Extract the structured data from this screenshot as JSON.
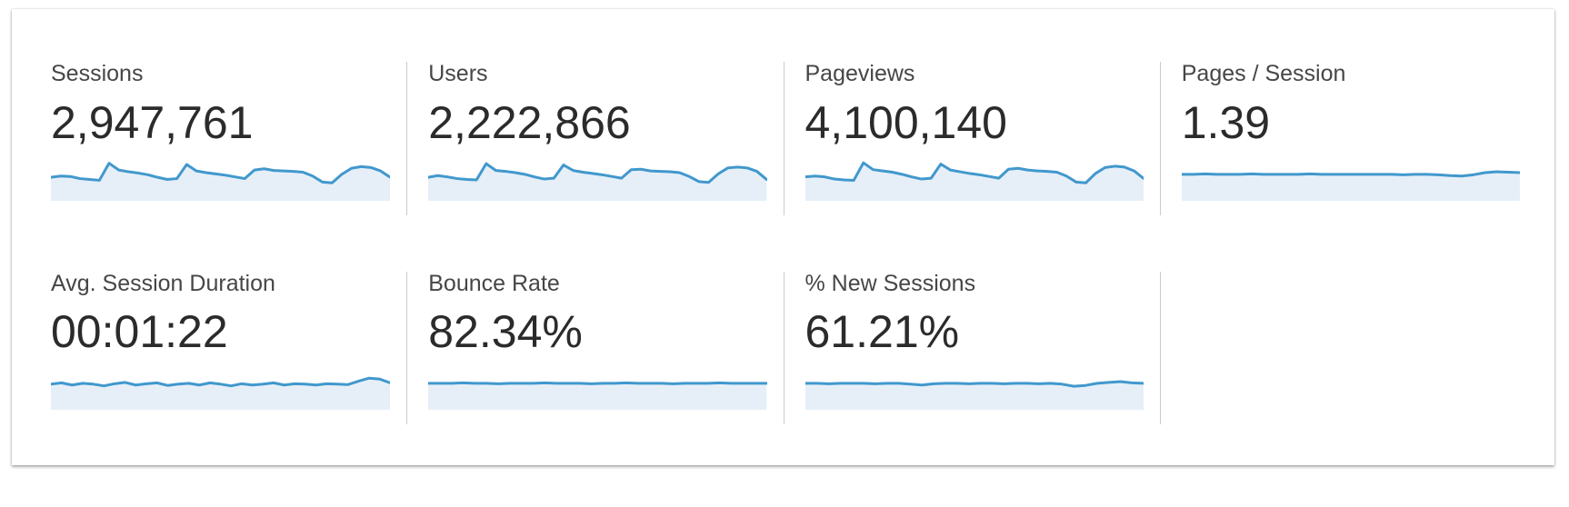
{
  "panel": {
    "background": "#ffffff",
    "divider_color": "#cccccc"
  },
  "colors": {
    "sparkline_stroke": "#4198cd",
    "sparkline_fill": "#e6eff8",
    "label_text": "#464646",
    "value_text": "#2b2b2b"
  },
  "metrics": [
    {
      "label": "Sessions",
      "value": "2,947,761"
    },
    {
      "label": "Users",
      "value": "2,222,866"
    },
    {
      "label": "Pageviews",
      "value": "4,100,140"
    },
    {
      "label": "Pages / Session",
      "value": "1.39"
    },
    {
      "label": "Avg. Session Duration",
      "value": "00:01:22"
    },
    {
      "label": "Bounce Rate",
      "value": "82.34%"
    },
    {
      "label": "% New Sessions",
      "value": "61.21%"
    }
  ],
  "chart_data": [
    {
      "type": "area",
      "title": "Sessions",
      "value_label": "2,947,761",
      "axes_hidden": true,
      "units": "percent_of_sparkline_height",
      "values": [
        55,
        58,
        57,
        52,
        50,
        48,
        88,
        72,
        68,
        65,
        61,
        55,
        50,
        52,
        85,
        70,
        66,
        63,
        60,
        56,
        52,
        72,
        75,
        71,
        70,
        69,
        67,
        58,
        44,
        42,
        62,
        76,
        80,
        78,
        70,
        55
      ]
    },
    {
      "type": "area",
      "title": "Users",
      "value_label": "2,222,866",
      "axes_hidden": true,
      "units": "percent_of_sparkline_height",
      "values": [
        55,
        59,
        56,
        52,
        50,
        49,
        87,
        71,
        69,
        66,
        62,
        56,
        51,
        53,
        84,
        71,
        67,
        64,
        61,
        57,
        53,
        73,
        74,
        70,
        69,
        68,
        66,
        57,
        45,
        43,
        63,
        77,
        79,
        77,
        69,
        50
      ]
    },
    {
      "type": "area",
      "title": "Pageviews",
      "value_label": "4,100,140",
      "axes_hidden": true,
      "units": "percent_of_sparkline_height",
      "values": [
        56,
        58,
        56,
        51,
        49,
        48,
        89,
        73,
        70,
        67,
        62,
        56,
        51,
        53,
        86,
        72,
        68,
        64,
        61,
        57,
        53,
        74,
        76,
        72,
        70,
        69,
        67,
        58,
        44,
        42,
        64,
        78,
        81,
        79,
        70,
        52
      ]
    },
    {
      "type": "area",
      "title": "Pages / Session",
      "value_label": "1.39",
      "axes_hidden": true,
      "units": "percent_of_sparkline_height",
      "values": [
        62,
        62,
        63,
        62,
        62,
        62,
        63,
        62,
        62,
        62,
        62,
        63,
        62,
        62,
        62,
        62,
        62,
        62,
        62,
        61,
        62,
        62,
        61,
        59,
        58,
        61,
        66,
        68,
        67,
        66
      ]
    },
    {
      "type": "area",
      "title": "Avg. Session Duration",
      "value_label": "00:01:22",
      "axes_hidden": true,
      "units": "percent_of_sparkline_height",
      "values": [
        60,
        63,
        58,
        62,
        60,
        56,
        61,
        64,
        58,
        61,
        63,
        57,
        60,
        62,
        58,
        63,
        60,
        56,
        61,
        58,
        60,
        63,
        58,
        61,
        60,
        58,
        61,
        60,
        59,
        67,
        74,
        72,
        63
      ]
    },
    {
      "type": "area",
      "title": "Bounce Rate",
      "value_label": "82.34%",
      "axes_hidden": true,
      "units": "percent_of_sparkline_height",
      "values": [
        62,
        62,
        62,
        63,
        62,
        62,
        61,
        62,
        62,
        62,
        63,
        62,
        62,
        62,
        61,
        62,
        62,
        63,
        62,
        62,
        62,
        61,
        62,
        62,
        62,
        63,
        62,
        62,
        62,
        62
      ]
    },
    {
      "type": "area",
      "title": "% New Sessions",
      "value_label": "61.21%",
      "axes_hidden": true,
      "units": "percent_of_sparkline_height",
      "values": [
        62,
        62,
        61,
        62,
        62,
        62,
        61,
        62,
        62,
        60,
        58,
        61,
        62,
        62,
        61,
        62,
        62,
        61,
        62,
        62,
        61,
        62,
        60,
        55,
        57,
        62,
        64,
        66,
        63,
        62
      ]
    }
  ]
}
